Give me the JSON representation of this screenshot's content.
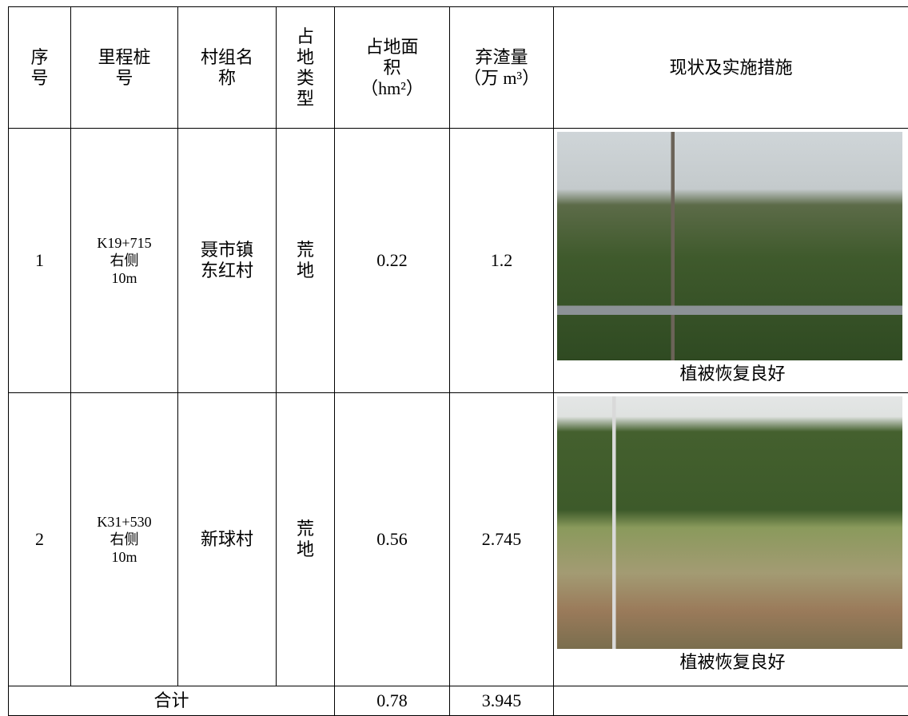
{
  "table": {
    "header": [
      [
        "序",
        "号"
      ],
      [
        "里程桩",
        "号"
      ],
      [
        "村组名",
        "称"
      ],
      [
        "占",
        "地",
        "类",
        "型"
      ],
      [
        "占地面",
        "积",
        "（hm²）"
      ],
      [
        "弃渣量",
        "（万 m³）"
      ],
      [
        "现状及实施措施"
      ]
    ],
    "rows": [
      {
        "no": 1,
        "station": [
          "K19+715",
          "右侧",
          "10m"
        ],
        "village": [
          "聂市镇",
          "东红村"
        ],
        "land": [
          "荒",
          "地"
        ],
        "area": 0.22,
        "spoil": 1.2,
        "status": "植被恢复良好"
      },
      {
        "no": 2,
        "station": [
          "K31+530",
          "右侧",
          "10m"
        ],
        "village": [
          "新球村"
        ],
        "land": [
          "荒",
          "地"
        ],
        "area": 0.56,
        "spoil": 2.745,
        "status": "植被恢复良好"
      }
    ],
    "total": {
      "label": "合计",
      "area": 0.78,
      "spoil": 3.945
    }
  }
}
